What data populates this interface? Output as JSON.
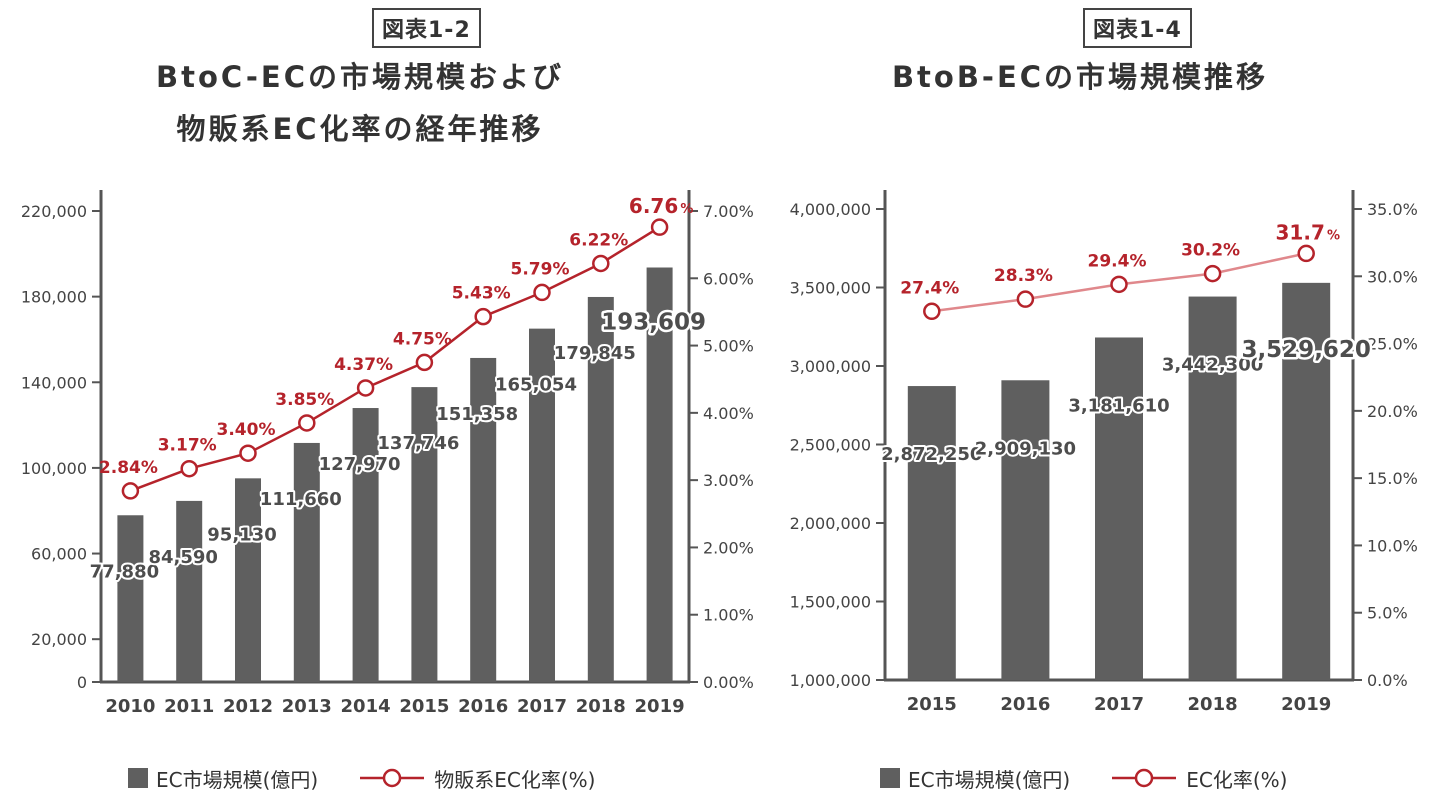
{
  "figure_left": {
    "tag": "図表1-2",
    "title_line1": "BtoC-ECの市場規模および",
    "title_line2": "物販系EC化率の経年推移"
  },
  "figure_right": {
    "tag": "図表1-4",
    "title_line1": "BtoB-ECの市場規模推移"
  },
  "colors": {
    "bar": "#5f5f5f",
    "line_left": "#b5232b",
    "line_right": "#e0888c",
    "label_red": "#b5232b",
    "axis": "#555555"
  },
  "chart_data": [
    {
      "type": "bar",
      "categories": [
        "2010",
        "2011",
        "2012",
        "2013",
        "2014",
        "2015",
        "2016",
        "2017",
        "2018",
        "2019"
      ],
      "series": [
        {
          "name": "EC市場規模(億円)",
          "type": "bar",
          "axis": "left",
          "values": [
            77880,
            84590,
            95130,
            111660,
            127970,
            137746,
            151358,
            165054,
            179845,
            193609
          ],
          "labels": [
            "77,880",
            "84,590",
            "95,130",
            "111,660",
            "127,970",
            "137,746",
            "151,358",
            "165,054",
            "179,845",
            "193,609"
          ]
        },
        {
          "name": "物販系EC化率(%)",
          "type": "line",
          "axis": "right",
          "values": [
            2.84,
            3.17,
            3.4,
            3.85,
            4.37,
            4.75,
            5.43,
            5.79,
            6.22,
            6.76
          ],
          "labels": [
            "2.84%",
            "3.17%",
            "3.40%",
            "3.85%",
            "4.37%",
            "4.75%",
            "5.43%",
            "5.79%",
            "6.22%",
            "6.76"
          ],
          "last_suffix": "%"
        }
      ],
      "y_left": {
        "ticks": [
          0,
          20000,
          60000,
          100000,
          140000,
          180000,
          220000
        ],
        "labels": [
          "0",
          "20,000",
          "60,000",
          "100,000",
          "140,000",
          "180,000",
          "220,000"
        ]
      },
      "y_right": {
        "ticks": [
          0,
          1,
          2,
          3,
          4,
          5,
          6,
          7
        ],
        "labels": [
          "0.00%",
          "1.00%",
          "2.00%",
          "3.00%",
          "4.00%",
          "5.00%",
          "6.00%",
          "7.00%"
        ]
      },
      "legend": {
        "bar": "EC市場規模(億円)",
        "line": "物販系EC化率(%)"
      }
    },
    {
      "type": "bar",
      "categories": [
        "2015",
        "2016",
        "2017",
        "2018",
        "2019"
      ],
      "series": [
        {
          "name": "EC市場規模(億円)",
          "type": "bar",
          "axis": "left",
          "values": [
            2872250,
            2909130,
            3181610,
            3442300,
            3529620
          ],
          "labels": [
            "2,872,250",
            "2,909,130",
            "3,181,610",
            "3,442,300",
            "3,529,620"
          ]
        },
        {
          "name": "EC化率(%)",
          "type": "line",
          "axis": "right",
          "values": [
            27.4,
            28.3,
            29.4,
            30.2,
            31.7
          ],
          "labels": [
            "27.4%",
            "28.3%",
            "29.4%",
            "30.2%",
            "31.7"
          ],
          "last_suffix": "%"
        }
      ],
      "y_left": {
        "ticks": [
          1000000,
          1500000,
          2000000,
          2500000,
          3000000,
          3500000,
          4000000
        ],
        "labels": [
          "1,000,000",
          "1,500,000",
          "2,000,000",
          "2,500,000",
          "3,000,000",
          "3,500,000",
          "4,000,000"
        ]
      },
      "y_right": {
        "ticks": [
          0,
          5,
          10,
          15,
          20,
          25,
          30,
          35
        ],
        "labels": [
          "0.0%",
          "5.0%",
          "10.0%",
          "15.0%",
          "20.0%",
          "25.0%",
          "30.0%",
          "35.0%"
        ]
      },
      "legend": {
        "bar": "EC市場規模(億円)",
        "line": "EC化率(%)"
      }
    }
  ]
}
